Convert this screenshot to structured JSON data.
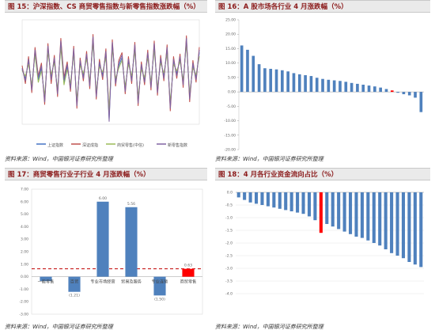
{
  "panels": {
    "p15": {
      "title": "图 15：沪深指数、CS 商贸零售指数与新零售指数涨跌幅（%）",
      "source": "资料来源：Wind，中国银河证券研究所整理"
    },
    "p16": {
      "title": "图 16：A 股市场各行业 4 月涨跌幅（%）",
      "source": "资料来源：Wind，中国银河证券研究所整理"
    },
    "p17": {
      "title": "图 17：商贸零售行业子行业 4 月涨跌幅（%）",
      "source": "资料来源：Wind，中国银河证券研究所整理"
    },
    "p18": {
      "title": "图 18：4 月各行业资金流向占比（%）",
      "source": "资料来源：Wind，中国银河证券研究所整理"
    }
  },
  "chart_data": [
    {
      "id": "fig15",
      "type": "line",
      "ylim": [
        -4,
        4
      ],
      "grid": false,
      "legend_position": "bottom",
      "series": [
        {
          "name": "上证指数",
          "color": "#4472c4",
          "values": [
            0.2,
            -0.5,
            0.8,
            -1.2,
            1.5,
            -0.6,
            0.3,
            -2.1,
            1.8,
            -0.4,
            0.9,
            -1.5,
            2.2,
            -0.8,
            0.4,
            -1.1,
            1.6,
            -2.4,
            0.7,
            -0.3,
            1.2,
            -0.9,
            2.5,
            -1.7,
            0.6,
            -0.2,
            1.4,
            -3.6,
            2.1,
            -0.7,
            0.5,
            1.1,
            -1.3,
            0.8,
            -0.5,
            1.9,
            -2.2,
            0.4,
            -0.6,
            1.3,
            -1.0,
            2.0,
            -1.4,
            0.9,
            -0.3,
            1.7,
            -2.6,
            0.8,
            -0.1,
            1.0,
            -0.8,
            2.4,
            -1.9,
            0.5,
            -0.4,
            1.5
          ]
        },
        {
          "name": "深证成指",
          "color": "#c0504d",
          "values": [
            0.5,
            -0.9,
            1.2,
            -1.6,
            1.9,
            -0.3,
            0.7,
            -2.5,
            2.2,
            -0.9,
            1.3,
            -1.9,
            2.6,
            -0.4,
            0.8,
            -1.5,
            2.0,
            -2.8,
            1.1,
            -0.7,
            1.6,
            -1.3,
            2.9,
            -2.1,
            1.0,
            -0.6,
            1.8,
            -3.2,
            2.5,
            -1.1,
            0.9,
            1.5,
            -1.7,
            1.2,
            -0.9,
            2.3,
            -2.6,
            0.8,
            -1.0,
            1.7,
            -1.4,
            2.4,
            -1.8,
            1.3,
            -0.7,
            2.1,
            -3.0,
            1.2,
            -0.5,
            1.4,
            -1.2,
            2.8,
            -2.3,
            0.9,
            -0.8,
            1.9
          ]
        },
        {
          "name": "商贸零售(中信)",
          "color": "#9bbb59",
          "values": [
            0.1,
            -0.3,
            0.6,
            -1.0,
            1.3,
            -0.8,
            0.1,
            -1.8,
            1.5,
            -0.2,
            0.7,
            -1.3,
            1.9,
            -1.0,
            0.2,
            -0.9,
            1.4,
            -2.1,
            0.5,
            -0.1,
            1.0,
            -0.7,
            2.2,
            -1.5,
            0.4,
            0.0,
            1.1,
            -3.0,
            1.8,
            -0.5,
            0.3,
            0.9,
            -1.1,
            0.6,
            -0.3,
            1.6,
            -1.9,
            0.2,
            -0.4,
            1.1,
            -0.8,
            1.7,
            -1.2,
            0.7,
            -0.1,
            1.4,
            -2.3,
            0.6,
            0.1,
            0.8,
            -0.6,
            2.1,
            -1.6,
            0.3,
            -0.2,
            1.2
          ]
        },
        {
          "name": "新零售指数",
          "color": "#8064a2",
          "values": [
            0.3,
            -0.7,
            1.0,
            -1.4,
            1.7,
            -0.4,
            0.5,
            -2.3,
            2.0,
            -0.6,
            1.1,
            -1.7,
            2.4,
            -0.6,
            0.6,
            -1.3,
            1.8,
            -2.6,
            0.9,
            -0.5,
            1.4,
            -1.1,
            2.7,
            -1.9,
            0.8,
            -0.4,
            1.6,
            -3.8,
            2.3,
            -0.9,
            0.7,
            1.3,
            -1.5,
            1.0,
            -0.7,
            2.1,
            -2.4,
            0.6,
            -0.8,
            1.5,
            -1.2,
            2.2,
            -1.6,
            1.1,
            -0.5,
            1.9,
            -2.8,
            1.0,
            -0.3,
            1.2,
            -1.0,
            2.6,
            -2.1,
            0.7,
            -0.6,
            1.7
          ]
        }
      ]
    },
    {
      "id": "fig16",
      "type": "bar",
      "ylim": [
        -20,
        25
      ],
      "yticks": [
        25,
        20,
        15,
        10,
        5,
        0,
        -5,
        -10,
        -15,
        -20
      ],
      "ytick_labels": [
        "25.00",
        "20.00",
        "15.00",
        "10.00",
        "5.00",
        "0.00",
        "-5.00",
        "-10.00",
        "-15.00",
        "-20.00"
      ],
      "values": [
        16.1,
        14.6,
        12.5,
        9.6,
        8.2,
        8.0,
        7.8,
        7.5,
        7.1,
        6.5,
        6.1,
        5.8,
        5.5,
        4.9,
        4.5,
        4.2,
        4.0,
        3.8,
        3.5,
        3.1,
        2.8,
        2.5,
        2.2,
        1.9,
        1.5,
        1.0,
        0.5,
        -0.3,
        -0.8,
        -1.2,
        -2.0,
        -7.0
      ],
      "highlight_index": 26,
      "bar_color": "#4f81bd",
      "highlight_color": "#ff0000"
    },
    {
      "id": "fig17",
      "type": "bar",
      "ylim": [
        -3,
        7
      ],
      "yticks": [
        7,
        6,
        5,
        4,
        3,
        2,
        1,
        0,
        -1,
        -2,
        -3
      ],
      "ytick_labels": [
        "7.00",
        "6.00",
        "5.00",
        "4.00",
        "3.00",
        "2.00",
        "1.00",
        "0.00",
        "-1.00",
        "-2.00",
        "-3.00"
      ],
      "categories": [
        "一般零售",
        "百货",
        "专业市场经营",
        "贸易及服务",
        "专业连锁",
        "商贸零售"
      ],
      "values": [
        -0.35,
        -1.21,
        6.0,
        5.56,
        -1.5,
        0.63
      ],
      "data_labels": [
        "",
        "(1.21)",
        "6.00",
        "5.56",
        "(1.50)",
        "0.63"
      ],
      "colors": [
        "#4f81bd",
        "#4f81bd",
        "#4f81bd",
        "#4f81bd",
        "#4f81bd",
        "#ff0000"
      ],
      "reference_line": 0.63,
      "reference_color": "#c00000"
    },
    {
      "id": "fig18",
      "type": "bar",
      "ylim": [
        -4,
        0
      ],
      "yticks": [
        0,
        -0.5,
        -1,
        -1.5,
        -2,
        -2.5,
        -3,
        -3.5,
        -4
      ],
      "ytick_labels": [
        "0.0",
        "-0.5",
        "-1.0",
        "-1.5",
        "-2.0",
        "-2.5",
        "-3.0",
        "-3.5",
        "-4.0"
      ],
      "values": [
        -0.2,
        -0.3,
        -0.4,
        -0.45,
        -0.5,
        -0.55,
        -0.6,
        -0.65,
        -0.7,
        -0.75,
        -0.8,
        -0.85,
        -0.95,
        -1.1,
        -1.6,
        -1.25,
        -1.35,
        -1.45,
        -1.55,
        -1.65,
        -1.75,
        -1.8,
        -1.9,
        -2.0,
        -2.1,
        -2.25,
        -2.4,
        -2.5,
        -2.6,
        -2.75,
        -2.85,
        -2.95
      ],
      "highlight_index": 14,
      "bar_color": "#4f81bd",
      "highlight_color": "#ff0000"
    }
  ]
}
